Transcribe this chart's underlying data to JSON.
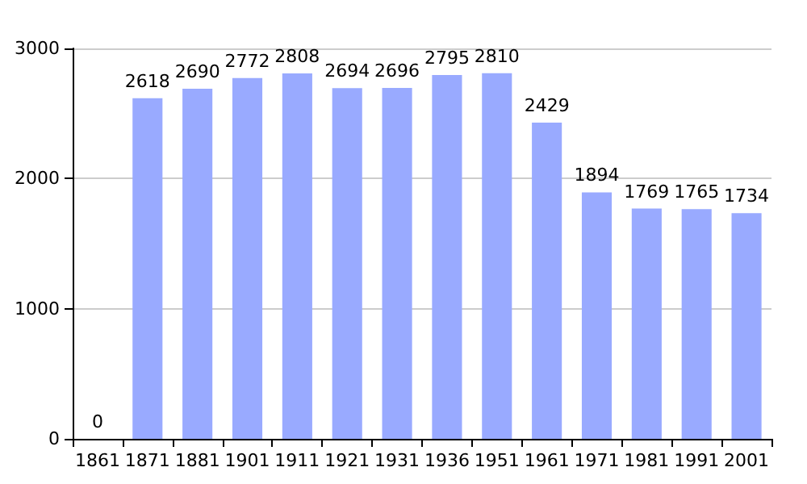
{
  "chart_data": {
    "type": "bar",
    "categories": [
      "1861",
      "1871",
      "1881",
      "1901",
      "1911",
      "1921",
      "1931",
      "1936",
      "1951",
      "1961",
      "1971",
      "1981",
      "1991",
      "2001"
    ],
    "values": [
      0,
      2618,
      2690,
      2772,
      2808,
      2694,
      2696,
      2795,
      2810,
      2429,
      1894,
      1769,
      1765,
      1734
    ],
    "color": "#99aaff",
    "ylim": [
      0,
      3000
    ],
    "yticks": [
      0,
      1000,
      2000,
      3000
    ],
    "grid": "y",
    "data_labels": true
  }
}
